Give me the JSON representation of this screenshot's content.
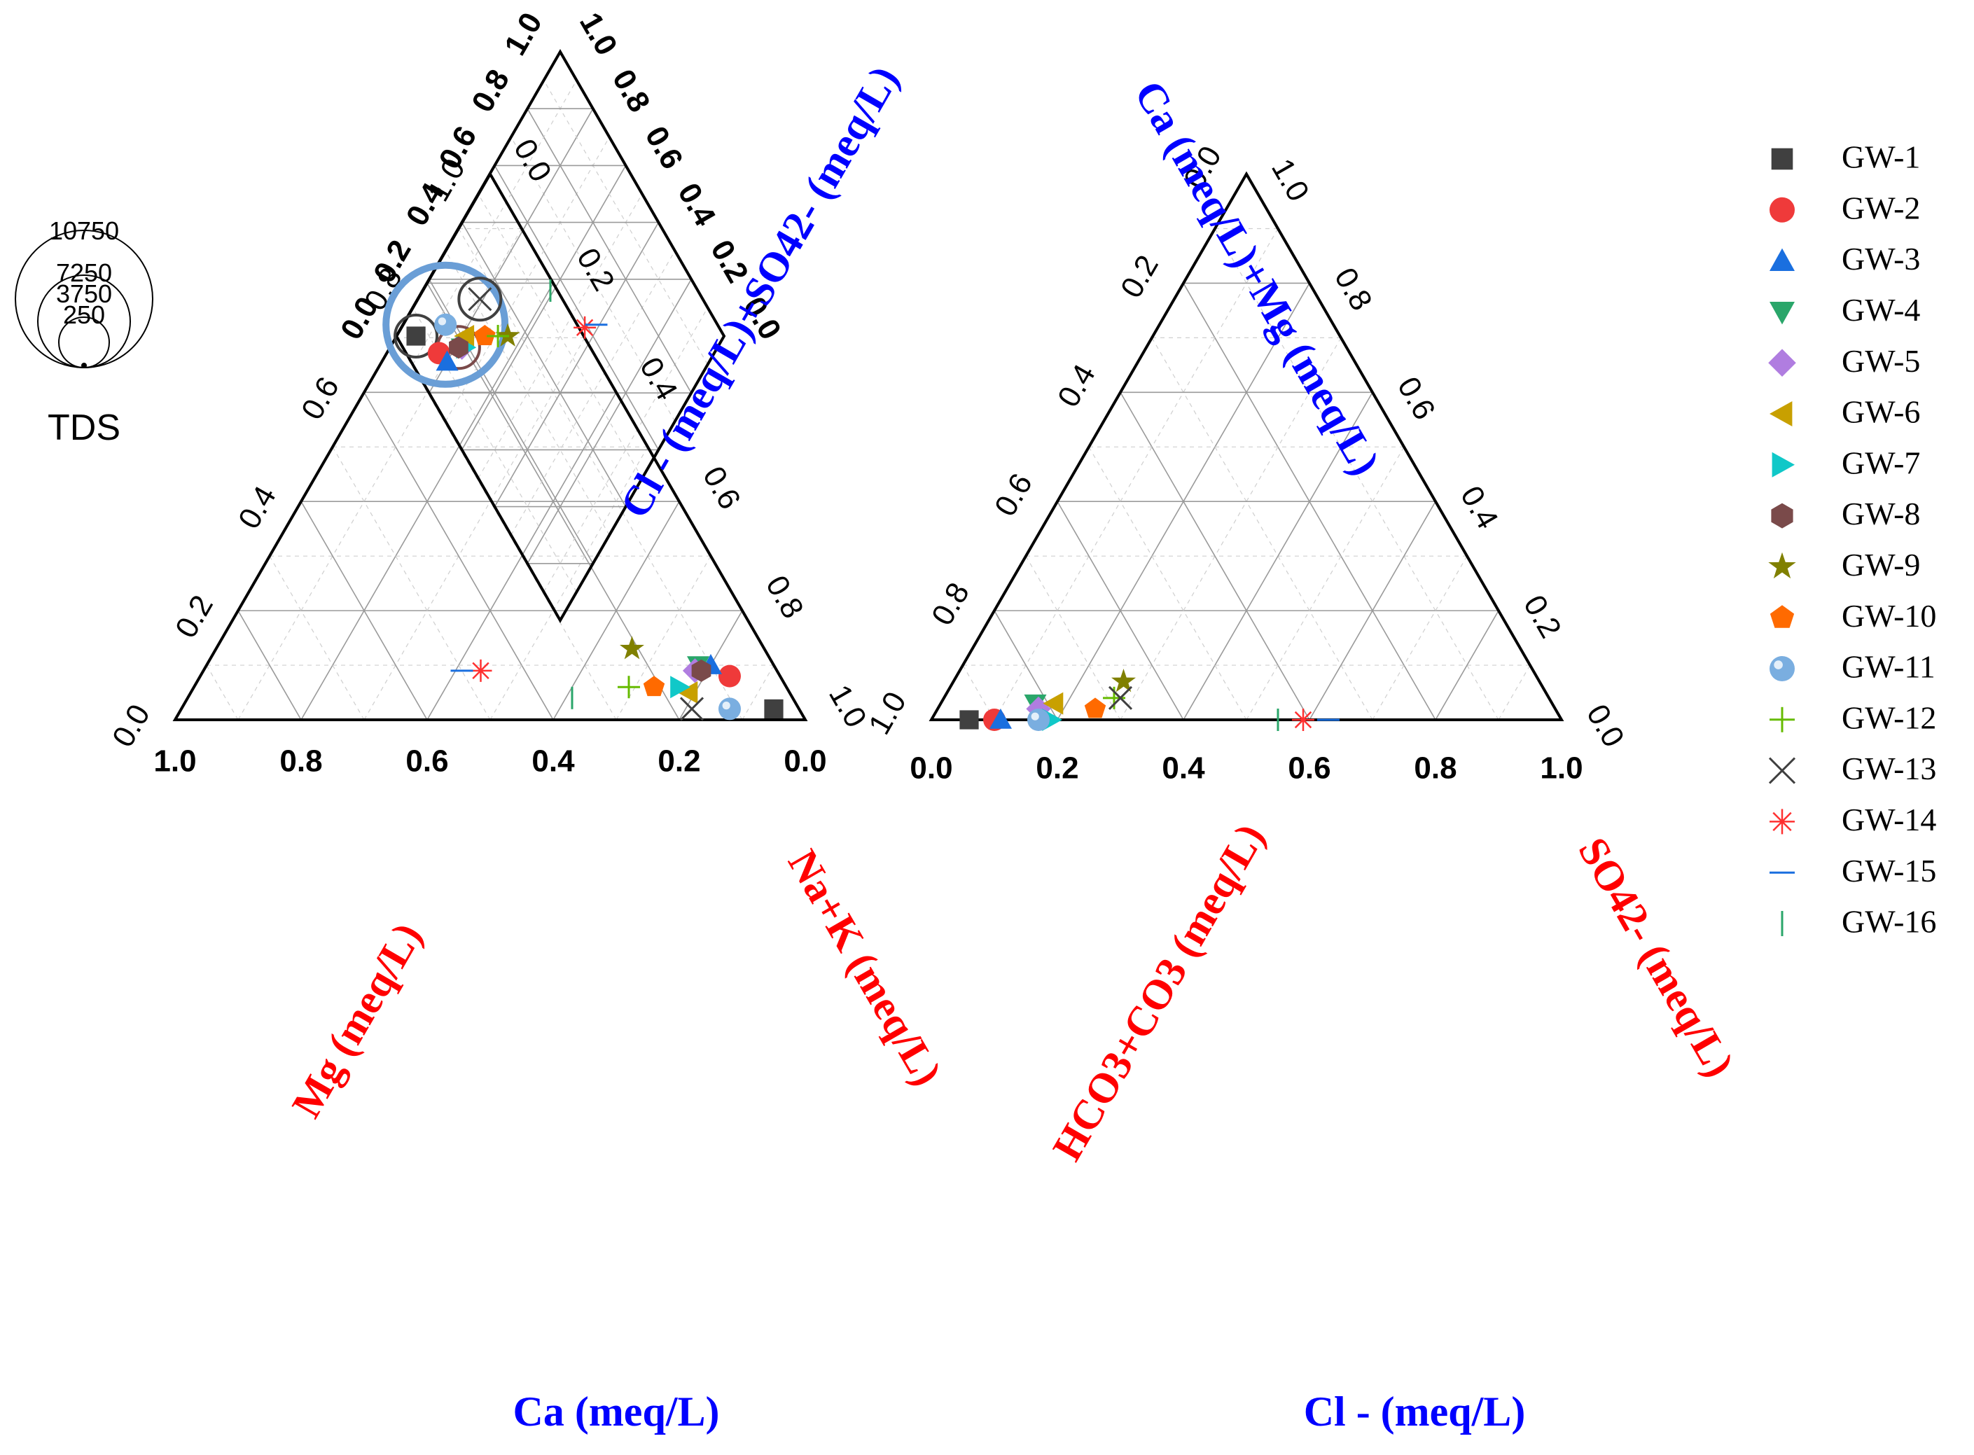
{
  "chart_data": {
    "type": "scatter",
    "subtype": "piper-diagram",
    "grid": true,
    "legend_position": "right",
    "cation_triangle": {
      "axes": {
        "bottom_label": "Ca (meq/L)",
        "left_label": "Mg (meq/L)",
        "right_label": "Na+K (meq/L)"
      },
      "bottom_ticks": [
        "1.0",
        "0.8",
        "0.6",
        "0.4",
        "0.2",
        "0.0"
      ],
      "left_ticks": [
        "0.0",
        "0.2",
        "0.4",
        "0.6",
        "0.8",
        "1.0"
      ],
      "right_ticks": [
        "0.0",
        "0.2",
        "0.4",
        "0.6",
        "0.8",
        "1.0"
      ]
    },
    "anion_triangle": {
      "axes": {
        "bottom_label": "Cl - (meq/L)",
        "left_label": "HCO3+CO3 (meq/L)",
        "right_label": "SO42- (meq/L)"
      },
      "bottom_ticks": [
        "0.0",
        "0.2",
        "0.4",
        "0.6",
        "0.8",
        "1.0"
      ],
      "left_ticks": [
        "1.0",
        "0.8",
        "0.6",
        "0.4",
        "0.2",
        "0.0"
      ],
      "right_ticks": [
        "0.0",
        "0.2",
        "0.4",
        "0.6",
        "0.8",
        "1.0"
      ]
    },
    "diamond": {
      "axes": {
        "left_label": "Cl - (meq/L)+SO42- (meq/L)",
        "right_label": "Ca (meq/L)+Mg (meq/L)"
      },
      "left_ticks": [
        "0.0",
        "0.2",
        "0.4",
        "0.6",
        "0.8",
        "1.0"
      ],
      "right_ticks": [
        "1.0",
        "0.8",
        "0.6",
        "0.4",
        "0.2",
        "0.0"
      ]
    },
    "tds_legend": {
      "title": "TDS",
      "values": [
        "10750",
        "7250",
        "3750",
        "250"
      ]
    },
    "series": [
      {
        "name": "GW-1",
        "marker": "square",
        "color": "#404040",
        "ca": 0.04,
        "mg": 0.02,
        "cl": 0.06,
        "so4": 0.0,
        "tds": 1100
      },
      {
        "name": "GW-2",
        "marker": "circle",
        "color": "#ef3a3a",
        "ca": 0.08,
        "mg": 0.08,
        "cl": 0.1,
        "so4": 0.0,
        "tds": 500
      },
      {
        "name": "GW-3",
        "marker": "triangle-up",
        "color": "#1a6fdf",
        "ca": 0.1,
        "mg": 0.1,
        "cl": 0.11,
        "so4": 0.0,
        "tds": 500
      },
      {
        "name": "GW-4",
        "marker": "triangle-down",
        "color": "#2aa66a",
        "ca": 0.12,
        "mg": 0.1,
        "cl": 0.15,
        "so4": 0.03,
        "tds": 500
      },
      {
        "name": "GW-5",
        "marker": "diamond",
        "color": "#b07de0",
        "ca": 0.13,
        "mg": 0.09,
        "cl": 0.16,
        "so4": 0.02,
        "tds": 500
      },
      {
        "name": "GW-6",
        "marker": "triangle-left",
        "color": "#c8a000",
        "ca": 0.16,
        "mg": 0.05,
        "cl": 0.18,
        "so4": 0.03,
        "tds": 500
      },
      {
        "name": "GW-7",
        "marker": "triangle-right",
        "color": "#10c8c8",
        "ca": 0.17,
        "mg": 0.06,
        "cl": 0.19,
        "so4": 0.0,
        "tds": 500
      },
      {
        "name": "GW-8",
        "marker": "hexagon",
        "color": "#7a4a4a",
        "ca": 0.12,
        "mg": 0.09,
        "cl": 0.17,
        "so4": 0.0,
        "tds": 1500
      },
      {
        "name": "GW-9",
        "marker": "star",
        "color": "#808000",
        "ca": 0.21,
        "mg": 0.13,
        "cl": 0.27,
        "so4": 0.07,
        "tds": 500
      },
      {
        "name": "GW-10",
        "marker": "pentagon",
        "color": "#ff6a00",
        "ca": 0.21,
        "mg": 0.06,
        "cl": 0.25,
        "so4": 0.02,
        "tds": 500
      },
      {
        "name": "GW-11",
        "marker": "sphere",
        "color": "#7aaee0",
        "ca": 0.11,
        "mg": 0.02,
        "cl": 0.17,
        "so4": 0.0,
        "tds": 6000
      },
      {
        "name": "GW-12",
        "marker": "plus",
        "color": "#66bb00",
        "ca": 0.25,
        "mg": 0.06,
        "cl": 0.27,
        "so4": 0.04,
        "tds": 500
      },
      {
        "name": "GW-13",
        "marker": "x",
        "color": "#404040",
        "ca": 0.17,
        "mg": 0.02,
        "cl": 0.28,
        "so4": 0.04,
        "tds": 1500
      },
      {
        "name": "GW-14",
        "marker": "asterisk",
        "color": "#ff3030",
        "ca": 0.47,
        "mg": 0.09,
        "cl": 0.59,
        "so4": 0.0,
        "tds": 500
      },
      {
        "name": "GW-15",
        "marker": "hline",
        "color": "#1a6fdf",
        "ca": 0.5,
        "mg": 0.09,
        "cl": 0.63,
        "so4": 0.0,
        "tds": 500
      },
      {
        "name": "GW-16",
        "marker": "vline",
        "color": "#2aa66a",
        "ca": 0.35,
        "mg": 0.04,
        "cl": 0.55,
        "so4": 0.0,
        "tds": 500
      }
    ]
  }
}
